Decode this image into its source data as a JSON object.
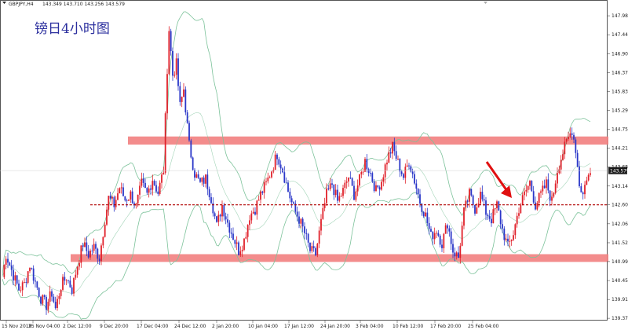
{
  "header": {
    "symbol": "GBPJPY,H4",
    "ohlc": "143.349 143.710 143.256 143.579"
  },
  "chart_data": {
    "type": "candlestick",
    "title": "镑日4小时图",
    "xlabel": "",
    "ylabel": "",
    "ylim": [
      139.4,
      148.3
    ],
    "y_ticks": [
      "147.985",
      "147.445",
      "146.905",
      "146.370",
      "145.830",
      "145.295",
      "144.755",
      "144.215",
      "143.680",
      "143.140",
      "142.605",
      "142.065",
      "141.525",
      "140.990",
      "140.450",
      "139.910",
      "139.375"
    ],
    "x_ticks": [
      "15 Nov 2019",
      "25 Nov 04:00",
      "2 Dec 12:00",
      "9 Dec 20:00",
      "17 Dec 04:00",
      "24 Dec 12:00",
      "2 Jan 20:00",
      "10 Jan 04:00",
      "17 Jan 12:00",
      "24 Jan 20:00",
      "3 Feb 04:00",
      "10 Feb 12:00",
      "17 Feb 20:00",
      "25 Feb 04:00"
    ],
    "current_price": "143.579",
    "colors": {
      "bull": "#e0202a",
      "bear": "#2a36c8",
      "band": "#7cc29a",
      "zone": "#f28080",
      "arrow": "#e01010"
    },
    "resistance_zone": [
      144.32,
      144.55
    ],
    "support_zone": [
      140.98,
      141.2
    ],
    "support_line": 142.605,
    "bollinger_bands": true,
    "arrow": {
      "from": [
        0.0,
        143.7
      ],
      "to": [
        1.0,
        142.65
      ]
    },
    "close_path": [
      [
        0,
        140.55
      ],
      [
        2,
        141.2
      ],
      [
        4,
        140.9
      ],
      [
        6,
        140.6
      ],
      [
        9,
        140.2
      ],
      [
        12,
        140.35
      ],
      [
        15,
        140.9
      ],
      [
        18,
        140.4
      ],
      [
        21,
        139.95
      ],
      [
        24,
        139.75
      ],
      [
        27,
        140.1
      ],
      [
        29,
        139.65
      ],
      [
        32,
        140.3
      ],
      [
        35,
        140.55
      ],
      [
        38,
        140.2
      ],
      [
        41,
        140.9
      ],
      [
        44,
        141.5
      ],
      [
        47,
        141.2
      ],
      [
        50,
        141.4
      ],
      [
        53,
        141.1
      ],
      [
        56,
        142.2
      ],
      [
        58,
        142.8
      ],
      [
        61,
        142.6
      ],
      [
        64,
        143.1
      ],
      [
        67,
        142.75
      ],
      [
        70,
        142.9
      ],
      [
        73,
        142.55
      ],
      [
        76,
        143.2
      ],
      [
        79,
        142.9
      ],
      [
        82,
        143.35
      ],
      [
        85,
        142.95
      ],
      [
        88,
        143.6
      ],
      [
        90,
        146.5
      ],
      [
        91,
        147.6
      ],
      [
        93,
        146.3
      ],
      [
        95,
        146.6
      ],
      [
        97,
        145.4
      ],
      [
        99,
        145.9
      ],
      [
        102,
        144.3
      ],
      [
        105,
        143.5
      ],
      [
        108,
        143.2
      ],
      [
        111,
        143.35
      ],
      [
        114,
        142.8
      ],
      [
        117,
        142.0
      ],
      [
        120,
        142.6
      ],
      [
        123,
        142.1
      ],
      [
        126,
        141.7
      ],
      [
        129,
        141.3
      ],
      [
        132,
        141.6
      ],
      [
        135,
        142.3
      ],
      [
        138,
        142.5
      ],
      [
        141,
        142.9
      ],
      [
        144,
        143.2
      ],
      [
        147,
        143.6
      ],
      [
        150,
        144.05
      ],
      [
        153,
        143.6
      ],
      [
        156,
        143.0
      ],
      [
        159,
        142.5
      ],
      [
        162,
        142.2
      ],
      [
        165,
        141.8
      ],
      [
        168,
        141.3
      ],
      [
        171,
        141.2
      ],
      [
        174,
        142.1
      ],
      [
        177,
        142.9
      ],
      [
        180,
        143.2
      ],
      [
        183,
        142.7
      ],
      [
        186,
        143.0
      ],
      [
        189,
        143.4
      ],
      [
        192,
        142.9
      ],
      [
        195,
        143.3
      ],
      [
        198,
        143.85
      ],
      [
        201,
        143.5
      ],
      [
        204,
        143.0
      ],
      [
        207,
        143.3
      ],
      [
        210,
        143.9
      ],
      [
        213,
        144.25
      ],
      [
        216,
        143.8
      ],
      [
        219,
        143.4
      ],
      [
        222,
        143.85
      ],
      [
        225,
        143.3
      ],
      [
        228,
        142.7
      ],
      [
        231,
        142.3
      ],
      [
        234,
        141.7
      ],
      [
        237,
        141.9
      ],
      [
        240,
        141.5
      ],
      [
        243,
        142.1
      ],
      [
        246,
        141.3
      ],
      [
        249,
        141.1
      ],
      [
        252,
        142.4
      ],
      [
        255,
        142.9
      ],
      [
        258,
        142.5
      ],
      [
        261,
        142.9
      ],
      [
        264,
        142.4
      ],
      [
        267,
        142.2
      ],
      [
        270,
        142.6
      ],
      [
        273,
        141.9
      ],
      [
        276,
        141.4
      ],
      [
        279,
        141.8
      ],
      [
        282,
        142.5
      ],
      [
        285,
        142.9
      ],
      [
        288,
        143.25
      ],
      [
        291,
        142.6
      ],
      [
        294,
        142.9
      ],
      [
        297,
        143.2
      ],
      [
        300,
        142.7
      ],
      [
        303,
        143.6
      ],
      [
        306,
        144.1
      ],
      [
        309,
        144.5
      ],
      [
        311,
        144.75
      ],
      [
        313,
        144.2
      ],
      [
        315,
        143.2
      ],
      [
        317,
        142.9
      ],
      [
        319,
        143.4
      ],
      [
        321,
        143.45
      ]
    ]
  }
}
